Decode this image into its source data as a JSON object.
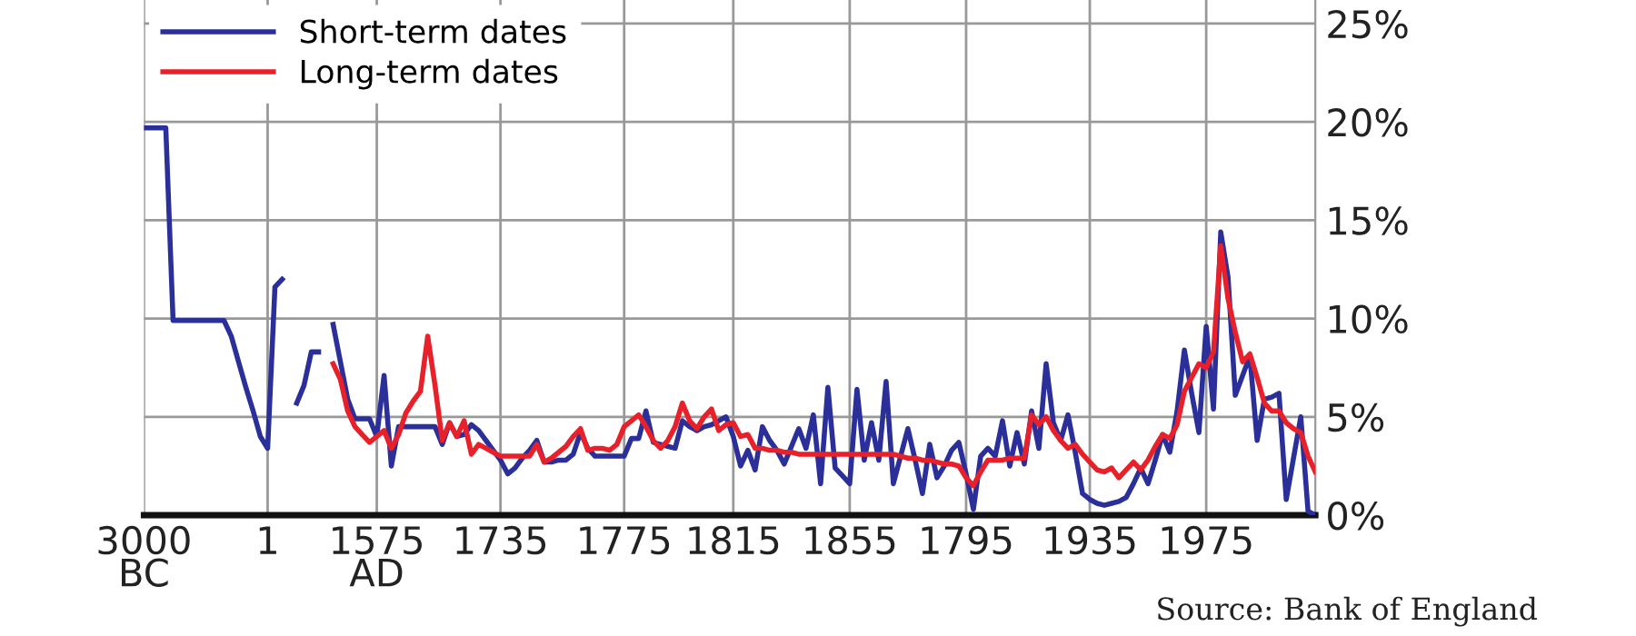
{
  "chart_data": {
    "type": "line",
    "categories": [
      "3000\nBC",
      null,
      null,
      null,
      null,
      null,
      null,
      null,
      null,
      null,
      null,
      null,
      null,
      null,
      null,
      null,
      null,
      "1",
      null,
      null,
      null,
      null,
      null,
      null,
      null,
      null,
      null,
      null,
      null,
      null,
      null,
      null,
      "1575\nAD",
      null,
      null,
      null,
      null,
      null,
      null,
      null,
      null,
      null,
      null,
      null,
      null,
      null,
      null,
      null,
      null,
      "1735",
      null,
      null,
      null,
      null,
      null,
      null,
      null,
      null,
      null,
      null,
      null,
      null,
      null,
      null,
      null,
      null,
      "1775",
      null,
      null,
      null,
      null,
      null,
      null,
      null,
      null,
      null,
      null,
      null,
      null,
      null,
      null,
      "1815",
      null,
      null,
      null,
      null,
      null,
      null,
      null,
      null,
      null,
      null,
      null,
      null,
      null,
      null,
      null,
      "1855",
      null,
      null,
      null,
      null,
      null,
      null,
      null,
      null,
      null,
      null,
      null,
      null,
      null,
      null,
      null,
      "1795",
      null,
      null,
      null,
      null,
      null,
      null,
      null,
      null,
      null,
      null,
      null,
      null,
      null,
      null,
      null,
      null,
      "1935",
      null,
      null,
      null,
      null,
      null,
      null,
      null,
      null,
      null,
      null,
      null,
      null,
      null,
      null,
      null,
      "1975",
      null,
      null,
      null,
      null,
      null,
      null,
      null,
      null,
      null,
      null,
      null,
      null,
      null,
      null,
      null
    ],
    "ylim": [
      0,
      26.2
    ],
    "yticks": [
      {
        "value": 0,
        "label": "0%"
      },
      {
        "value": 5,
        "label": "5%"
      },
      {
        "value": 10,
        "label": "10%"
      },
      {
        "value": 15,
        "label": "15%"
      },
      {
        "value": 20,
        "label": "20%"
      },
      {
        "value": 25,
        "label": "25%"
      }
    ],
    "grid": true,
    "legend": "top left",
    "line_style": "solid",
    "marker": "none",
    "annotations": [
      "Source: Bank of England"
    ],
    "series": [
      {
        "name": "Short-term dates",
        "color": "#2b2f99",
        "values": [
          19.7,
          19.7,
          19.7,
          19.7,
          9.9,
          9.9,
          9.9,
          9.9,
          9.9,
          9.9,
          9.9,
          9.9,
          9.1,
          7.8,
          6.5,
          5.3,
          4.0,
          3.4,
          11.6,
          12.0,
          null,
          5.7,
          6.6,
          8.3,
          8.3,
          null,
          9.7,
          7.8,
          5.9,
          4.9,
          4.9,
          4.9,
          4.0,
          7.1,
          2.5,
          4.5,
          4.5,
          4.5,
          4.5,
          4.5,
          4.5,
          3.6,
          4.7,
          4.0,
          4.1,
          4.6,
          4.3,
          3.8,
          3.3,
          2.8,
          2.1,
          2.4,
          2.9,
          3.3,
          3.8,
          2.7,
          2.7,
          2.8,
          2.8,
          3.1,
          4.2,
          3.4,
          3.0,
          3.0,
          3.0,
          3.0,
          3.0,
          3.9,
          3.9,
          5.3,
          3.7,
          3.6,
          3.5,
          3.4,
          4.8,
          4.5,
          4.3,
          4.5,
          4.6,
          4.8,
          5.0,
          4.0,
          2.5,
          3.3,
          2.3,
          4.5,
          3.8,
          3.3,
          2.6,
          3.5,
          4.4,
          3.4,
          5.1,
          1.6,
          6.5,
          2.4,
          2.0,
          1.6,
          6.4,
          2.8,
          4.7,
          2.8,
          6.8,
          1.6,
          3.0,
          4.4,
          2.8,
          1.1,
          3.6,
          1.9,
          2.5,
          3.3,
          3.7,
          2.1,
          0.3,
          3.0,
          3.4,
          3.0,
          4.8,
          2.5,
          4.2,
          2.6,
          5.3,
          3.4,
          7.7,
          4.7,
          3.8,
          5.1,
          3.2,
          1.1,
          0.8,
          0.6,
          0.5,
          0.6,
          0.7,
          0.9,
          1.6,
          2.4,
          1.6,
          2.8,
          4.1,
          3.2,
          5.3,
          8.4,
          6.2,
          4.2,
          9.6,
          5.4,
          14.4,
          12.1,
          6.1,
          7.1,
          8.1,
          3.8,
          5.9,
          6.0,
          6.2,
          0.8,
          2.9,
          5.0,
          0.2,
          0.0
        ]
      },
      {
        "name": "Long-term dates",
        "color": "#e8202a",
        "values": [
          null,
          null,
          null,
          null,
          null,
          null,
          null,
          null,
          null,
          null,
          null,
          null,
          null,
          null,
          null,
          null,
          null,
          null,
          null,
          null,
          null,
          null,
          null,
          null,
          null,
          null,
          7.7,
          6.9,
          5.3,
          4.5,
          4.1,
          3.7,
          4.0,
          4.3,
          3.4,
          4.1,
          5.2,
          5.8,
          6.3,
          9.1,
          6.6,
          3.8,
          4.7,
          4.0,
          4.8,
          3.1,
          3.6,
          3.4,
          3.2,
          3.0,
          3.0,
          3.0,
          3.0,
          3.0,
          3.6,
          2.7,
          2.9,
          3.2,
          3.5,
          4.0,
          4.4,
          3.3,
          3.4,
          3.4,
          3.3,
          3.6,
          4.5,
          4.8,
          5.1,
          4.5,
          3.8,
          3.4,
          3.8,
          4.5,
          5.7,
          4.8,
          4.4,
          5.0,
          5.4,
          4.3,
          4.6,
          4.7,
          4.0,
          4.1,
          3.4,
          3.4,
          3.3,
          3.3,
          3.2,
          3.2,
          3.1,
          3.1,
          3.1,
          3.1,
          3.1,
          3.1,
          3.1,
          3.1,
          3.1,
          3.1,
          3.1,
          3.1,
          3.1,
          3.1,
          3.0,
          2.9,
          2.9,
          2.8,
          2.8,
          2.7,
          2.6,
          2.6,
          2.5,
          1.9,
          1.5,
          2.2,
          2.8,
          2.8,
          2.8,
          2.9,
          2.9,
          2.9,
          5.1,
          4.6,
          5.0,
          4.3,
          3.8,
          3.4,
          3.6,
          3.1,
          2.7,
          2.3,
          2.2,
          2.4,
          1.9,
          2.3,
          2.7,
          2.3,
          2.8,
          3.5,
          4.1,
          3.9,
          4.6,
          6.3,
          7.0,
          7.7,
          7.5,
          8.3,
          13.7,
          11.0,
          9.3,
          7.8,
          8.2,
          7.0,
          5.7,
          5.3,
          5.3,
          4.7,
          4.4,
          4.2,
          3.0,
          2.2
        ]
      }
    ]
  }
}
